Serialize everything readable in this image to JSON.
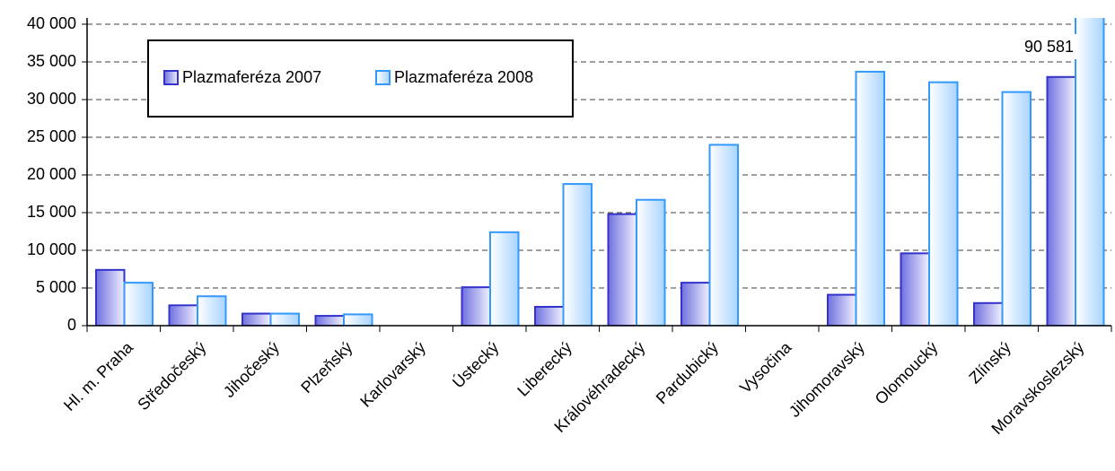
{
  "chart_data": {
    "type": "bar",
    "categories": [
      "Hl. m. Praha",
      "Středočeský",
      "Jihočeský",
      "Plzeňský",
      "Karlovarský",
      "Ústecký",
      "Liberecký",
      "Královéhradecký",
      "Pardubický",
      "Vysočina",
      "Jihomoravský",
      "Olomoucký",
      "Zlínský",
      "Moravskoslezský"
    ],
    "series": [
      {
        "name": "Plazmaferéza 2007",
        "color": "#3333cc",
        "values": [
          7400,
          2700,
          1600,
          1300,
          0,
          5100,
          2500,
          14800,
          5700,
          0,
          4100,
          9600,
          3000,
          33000
        ]
      },
      {
        "name": "Plazmaferéza 2008",
        "color": "#3399ff",
        "values": [
          5700,
          3900,
          1600,
          1500,
          0,
          12400,
          18800,
          16700,
          24000,
          0,
          33700,
          32300,
          31000,
          90581
        ],
        "value_labels": [
          null,
          null,
          null,
          null,
          null,
          null,
          null,
          null,
          null,
          null,
          null,
          null,
          null,
          "90 581"
        ]
      }
    ],
    "ylim": [
      0,
      40000
    ],
    "yticks": [
      0,
      {
        "value": 5000,
        "label": "5 000"
      },
      {
        "value": 10000,
        "label": "10 000"
      },
      {
        "value": 15000,
        "label": "15 000"
      },
      {
        "value": 20000,
        "label": "20 000"
      },
      {
        "value": 25000,
        "label": "25 000"
      },
      {
        "value": 30000,
        "label": "30 000"
      },
      {
        "value": 35000,
        "label": "35 000"
      },
      {
        "value": 40000,
        "label": "40 000"
      }
    ],
    "grid": true,
    "legend": "top-left"
  }
}
